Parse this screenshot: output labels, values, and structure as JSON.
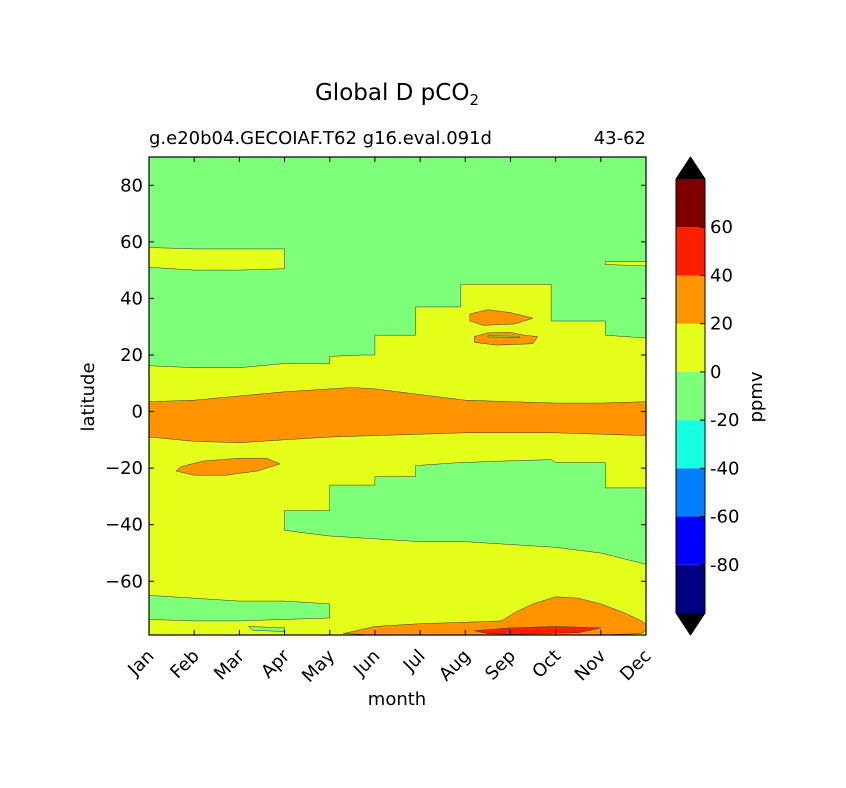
{
  "chart_data": {
    "type": "contour",
    "title": "Global D pCO",
    "title_subscript": "2",
    "subtitle_left": "g.e20b04.GECOIAF.T62 g16.eval.091d",
    "subtitle_right": "43-62",
    "xlabel": "month",
    "ylabel": "latitude",
    "x_categories": [
      "Jan",
      "Feb",
      "Mar",
      "Apr",
      "May",
      "Jun",
      "Jul",
      "Aug",
      "Sep",
      "Oct",
      "Nov",
      "Dec"
    ],
    "xlim": [
      1,
      12
    ],
    "ylim": [
      -79,
      90
    ],
    "yticks": [
      80,
      60,
      40,
      20,
      0,
      -20,
      -40,
      -60
    ],
    "colorbar": {
      "label": "ppmv",
      "levels": [
        -100,
        -80,
        -60,
        -40,
        -20,
        0,
        20,
        40,
        60,
        80
      ],
      "tick_labels": [
        "60",
        "40",
        "20",
        "0",
        "-20",
        "-40",
        "-60",
        "-80"
      ],
      "tick_values": [
        60,
        40,
        20,
        0,
        -20,
        -40,
        -60,
        -80
      ],
      "colors": [
        "#000080",
        "#0000ff",
        "#0080ff",
        "#15ffe1",
        "#7dff7a",
        "#e4ff1a",
        "#ff9400",
        "#ff1e00",
        "#800000"
      ],
      "under_color": "#000000",
      "over_color": "#000000"
    },
    "regions": [
      {
        "name": "background",
        "band": "0 to 20",
        "color": "#e4ff1a",
        "poly": [
          [
            1,
            -79
          ],
          [
            12,
            -79
          ],
          [
            12,
            90
          ],
          [
            1,
            90
          ]
        ]
      },
      {
        "name": "north-band",
        "band": "-20 to 0",
        "color": "#7dff7a",
        "poly": [
          [
            1,
            90
          ],
          [
            12,
            90
          ],
          [
            12,
            26
          ],
          [
            11.1,
            27
          ],
          [
            11.1,
            32
          ],
          [
            9.9,
            32
          ],
          [
            9.9,
            45
          ],
          [
            8.8,
            45
          ],
          [
            7.9,
            45
          ],
          [
            7.9,
            37
          ],
          [
            7,
            37
          ],
          [
            6.9,
            37
          ],
          [
            6.9,
            27
          ],
          [
            6,
            27
          ],
          [
            6,
            20
          ],
          [
            5.7,
            20
          ],
          [
            5,
            19.5
          ],
          [
            5,
            17
          ],
          [
            4,
            17
          ],
          [
            3,
            15.5
          ],
          [
            2,
            15.5
          ],
          [
            1,
            16.2
          ]
        ]
      },
      {
        "name": "north-pocket-55N",
        "band": "0 to 20",
        "color": "#e4ff1a",
        "poly": [
          [
            1,
            58
          ],
          [
            2,
            57.5
          ],
          [
            3,
            57.5
          ],
          [
            4,
            57.5
          ],
          [
            4,
            50.5
          ],
          [
            3,
            50
          ],
          [
            2,
            50
          ],
          [
            1,
            51
          ]
        ]
      },
      {
        "name": "ne-pocket-52N",
        "band": "0 to 20",
        "color": "#e4ff1a",
        "poly": [
          [
            11.1,
            53
          ],
          [
            12,
            53
          ],
          [
            12,
            51.5
          ],
          [
            11.1,
            52
          ]
        ]
      },
      {
        "name": "blob-33N",
        "band": "20 to 40",
        "color": "#ff9400",
        "poly": [
          [
            8.1,
            34.5
          ],
          [
            8.5,
            36
          ],
          [
            9,
            35
          ],
          [
            9.5,
            33
          ],
          [
            9.1,
            31
          ],
          [
            8.4,
            30.5
          ],
          [
            8.1,
            32
          ]
        ]
      },
      {
        "name": "blob-26N",
        "band": "20 to 40",
        "color": "#ff9400",
        "poly": [
          [
            8.2,
            26.5
          ],
          [
            8.5,
            27.8
          ],
          [
            9,
            28
          ],
          [
            9.3,
            27
          ],
          [
            9.6,
            26.5
          ],
          [
            9.5,
            24
          ],
          [
            8.7,
            23.5
          ],
          [
            8.2,
            24.5
          ]
        ]
      },
      {
        "name": "blob-26N-inner",
        "band": "0 to 20",
        "color": "#e4ff1a",
        "poly": [
          [
            8.5,
            26.8
          ],
          [
            9.2,
            26.6
          ],
          [
            9.2,
            26.2
          ],
          [
            8.5,
            26.4
          ]
        ]
      },
      {
        "name": "equatorial-band",
        "band": "20 to 40",
        "color": "#ff9400",
        "poly": [
          [
            1,
            3.5
          ],
          [
            2,
            4
          ],
          [
            3,
            5.5
          ],
          [
            4,
            7
          ],
          [
            5,
            8
          ],
          [
            5.5,
            8.5
          ],
          [
            6,
            8
          ],
          [
            7,
            6
          ],
          [
            8,
            4
          ],
          [
            9,
            3.5
          ],
          [
            10,
            3
          ],
          [
            11,
            3
          ],
          [
            12,
            3.5
          ],
          [
            12,
            -8.5
          ],
          [
            11,
            -8
          ],
          [
            10,
            -7.5
          ],
          [
            9,
            -7.5
          ],
          [
            8,
            -7.5
          ],
          [
            7,
            -8
          ],
          [
            6,
            -8.5
          ],
          [
            5,
            -9
          ],
          [
            4,
            -10
          ],
          [
            3,
            -11
          ],
          [
            2,
            -10.5
          ],
          [
            1,
            -9
          ]
        ]
      },
      {
        "name": "blob-20S",
        "band": "20 to 40",
        "color": "#ff9400",
        "poly": [
          [
            1.7,
            -19.5
          ],
          [
            2.2,
            -17.5
          ],
          [
            3,
            -16.5
          ],
          [
            3.6,
            -16.5
          ],
          [
            3.9,
            -18.5
          ],
          [
            3.4,
            -21
          ],
          [
            2.7,
            -22.5
          ],
          [
            2,
            -22.5
          ],
          [
            1.6,
            -21
          ]
        ]
      },
      {
        "name": "south-band",
        "band": "-20 to 0",
        "color": "#7dff7a",
        "poly": [
          [
            4,
            -35
          ],
          [
            4,
            -42
          ],
          [
            5,
            -44
          ],
          [
            6,
            -45
          ],
          [
            7,
            -46
          ],
          [
            8,
            -46
          ],
          [
            9,
            -47
          ],
          [
            10,
            -48
          ],
          [
            11,
            -50
          ],
          [
            12,
            -54
          ],
          [
            12,
            -27
          ],
          [
            11.1,
            -27
          ],
          [
            11.1,
            -18
          ],
          [
            10,
            -18
          ],
          [
            9.9,
            -17
          ],
          [
            8.8,
            -17.5
          ],
          [
            8,
            -18
          ],
          [
            7.9,
            -18
          ],
          [
            7,
            -19
          ],
          [
            6.9,
            -19
          ],
          [
            6.9,
            -23
          ],
          [
            6,
            -23
          ],
          [
            6,
            -26
          ],
          [
            5,
            -26
          ],
          [
            5,
            -35
          ]
        ]
      },
      {
        "name": "south-pocket-70S",
        "band": "-20 to 0",
        "color": "#7dff7a",
        "poly": [
          [
            1,
            -65
          ],
          [
            2,
            -66
          ],
          [
            3,
            -67
          ],
          [
            4,
            -67
          ],
          [
            5,
            -68
          ],
          [
            5,
            -73
          ],
          [
            4,
            -73.5
          ],
          [
            3,
            -74
          ],
          [
            2,
            -74
          ],
          [
            1,
            -73.5
          ]
        ]
      },
      {
        "name": "antarctic-sliver",
        "band": "-20 to 0",
        "color": "#7dff7a",
        "poly": [
          [
            3.2,
            -76
          ],
          [
            4,
            -76.5
          ],
          [
            4,
            -77.8
          ],
          [
            3.3,
            -77.3
          ]
        ]
      },
      {
        "name": "antarctic-band",
        "band": "20 to 40",
        "color": "#ff9400",
        "poly": [
          [
            5.3,
            -78.5
          ],
          [
            6,
            -76
          ],
          [
            7,
            -75
          ],
          [
            8,
            -74.5
          ],
          [
            8.8,
            -74
          ],
          [
            9.1,
            -71
          ],
          [
            9.5,
            -68
          ],
          [
            10,
            -65.5
          ],
          [
            10.5,
            -66
          ],
          [
            11,
            -68
          ],
          [
            11.5,
            -71
          ],
          [
            11.9,
            -74
          ],
          [
            12.1,
            -76.5
          ],
          [
            11.9,
            -78.5
          ],
          [
            11,
            -79
          ],
          [
            9,
            -79
          ],
          [
            7,
            -79
          ],
          [
            6,
            -79
          ]
        ]
      },
      {
        "name": "antarctic-core",
        "band": "40 to 60",
        "color": "#ff1e00",
        "poly": [
          [
            8.2,
            -77.5
          ],
          [
            9,
            -76.5
          ],
          [
            10,
            -76
          ],
          [
            11,
            -76.5
          ],
          [
            10.5,
            -78.2
          ],
          [
            9,
            -78.8
          ],
          [
            8.5,
            -78.5
          ]
        ]
      }
    ]
  }
}
